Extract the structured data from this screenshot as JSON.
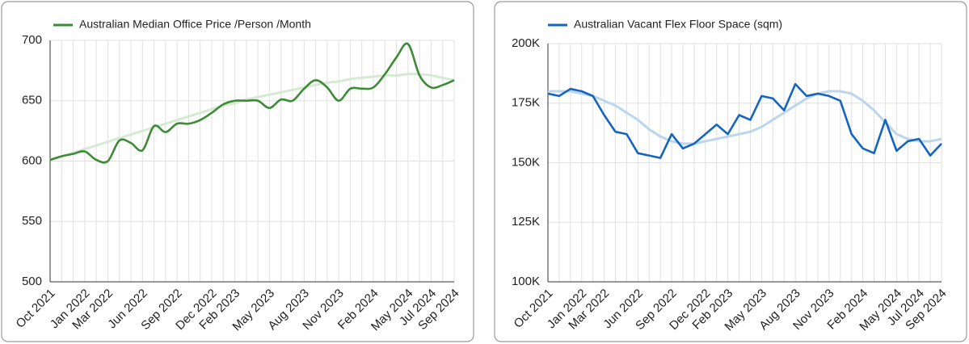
{
  "chart_data": [
    {
      "type": "line",
      "categories": [
        "Oct 2021",
        null,
        null,
        "Jan 2022",
        null,
        "Mar 2022",
        null,
        null,
        "Jun 2022",
        null,
        null,
        "Sep 2022",
        null,
        null,
        "Dec 2022",
        null,
        "Feb 2023",
        null,
        null,
        "May 2023",
        null,
        null,
        "Aug 2023",
        null,
        null,
        "Nov 2023",
        null,
        null,
        "Feb 2024",
        null,
        null,
        "May 2024",
        null,
        "Jul 2024",
        null,
        "Sep 2024"
      ],
      "series": [
        {
          "name": "Australian Median Office Price /Person /Month",
          "color": "#3d8b37",
          "values": [
            601,
            604,
            606,
            608,
            601,
            600,
            617,
            615,
            609,
            629,
            624,
            631,
            631,
            634,
            640,
            647,
            650,
            650,
            650,
            644,
            651,
            650,
            660,
            667,
            661,
            650,
            660,
            660,
            661,
            672,
            686,
            697,
            671,
            661,
            663,
            667
          ]
        },
        {
          "color": "#d4ebd1",
          "values": [
            601,
            604,
            607,
            610,
            613,
            616,
            619,
            622,
            625,
            628,
            631,
            634,
            637,
            640,
            643,
            646,
            648,
            651,
            653,
            655,
            657,
            659,
            661,
            663,
            665,
            666,
            668,
            669,
            670,
            671,
            671,
            672,
            672,
            671,
            669,
            667
          ]
        }
      ],
      "ylim": [
        500,
        700
      ],
      "yticks": [
        500,
        550,
        600,
        650,
        700
      ],
      "grid": true
    },
    {
      "type": "line",
      "categories": [
        "Oct 2021",
        null,
        null,
        "Jan 2022",
        null,
        "Mar 2022",
        null,
        null,
        "Jun 2022",
        null,
        null,
        "Sep 2022",
        null,
        null,
        "Dec 2022",
        null,
        "Feb 2023",
        null,
        null,
        "May 2023",
        null,
        null,
        "Aug 2023",
        null,
        null,
        "Nov 2023",
        null,
        null,
        "Feb 2024",
        null,
        null,
        "May 2024",
        null,
        "Jul 2024",
        null,
        "Sep 2024"
      ],
      "series": [
        {
          "name": "Australian Vacant Flex Floor Space (sqm)",
          "color": "#1565c0",
          "values": [
            179000,
            178000,
            181000,
            180000,
            178000,
            170000,
            163000,
            162000,
            154000,
            153000,
            152000,
            162000,
            156000,
            158000,
            162000,
            166000,
            162000,
            170000,
            168000,
            178000,
            177000,
            172000,
            183000,
            178000,
            179000,
            178000,
            176000,
            162000,
            156000,
            154000,
            168000,
            155000,
            159000,
            160000,
            153000,
            158000
          ]
        },
        {
          "color": "#bcd5ef",
          "values": [
            180000,
            180000,
            180000,
            179000,
            178000,
            176000,
            174000,
            171000,
            168000,
            164000,
            161000,
            159000,
            158000,
            158000,
            159000,
            160000,
            161000,
            162000,
            163000,
            165000,
            168000,
            171000,
            174000,
            177000,
            179000,
            180000,
            180000,
            179000,
            176000,
            172000,
            167000,
            162000,
            160000,
            159000,
            159000,
            160000
          ]
        }
      ],
      "ylim": [
        100000,
        200000
      ],
      "yticks": [
        {
          "value": 100000,
          "label": "100K"
        },
        {
          "value": 125000,
          "label": "125K"
        },
        {
          "value": 150000,
          "label": "150K"
        },
        {
          "value": 175000,
          "label": "175K"
        },
        {
          "value": 200000,
          "label": "200K"
        }
      ],
      "grid": true
    }
  ]
}
